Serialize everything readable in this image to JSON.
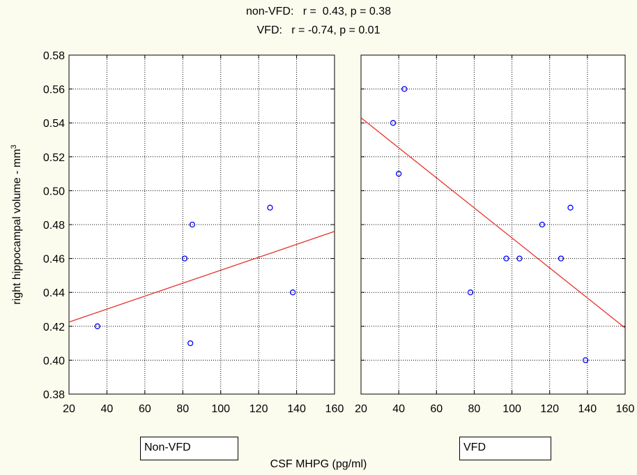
{
  "header": {
    "line1": "non-VFD:   r =  0.43, p = 0.38",
    "line2": "VFD:   r = -0.74, p = 0.01"
  },
  "ylabel": "right hippocampal volume - mm",
  "ylabel_superscript": "3",
  "xlabel": "CSF MHPG (pg/ml)",
  "colors": {
    "background": "#fcfcee",
    "plot_area": "#ffffff",
    "grid": "#000000",
    "marker": "#0000ff",
    "fit_line": "#e8302a"
  },
  "chart_data": [
    {
      "type": "scatter",
      "panel_label": "Non-VFD",
      "x": [
        35,
        81,
        84,
        85,
        126,
        138
      ],
      "y": [
        0.42,
        0.46,
        0.41,
        0.48,
        0.49,
        0.44
      ],
      "fit_line": {
        "x": [
          20,
          160
        ],
        "y": [
          0.4225,
          0.476
        ]
      },
      "xlim": [
        20,
        160
      ],
      "ylim": [
        0.38,
        0.58
      ],
      "xticks": [
        "20",
        "40",
        "60",
        "80",
        "100",
        "120",
        "140",
        "160"
      ],
      "yticks": [
        "0.38",
        "0.40",
        "0.42",
        "0.44",
        "0.46",
        "0.48",
        "0.50",
        "0.52",
        "0.54",
        "0.56",
        "0.58"
      ],
      "grid": true,
      "r": 0.43,
      "p": 0.38
    },
    {
      "type": "scatter",
      "panel_label": "VFD",
      "x": [
        37,
        40,
        43,
        78,
        97,
        104,
        116,
        126,
        131,
        139
      ],
      "y": [
        0.54,
        0.51,
        0.56,
        0.44,
        0.46,
        0.46,
        0.48,
        0.46,
        0.49,
        0.4
      ],
      "fit_line": {
        "x": [
          20,
          160
        ],
        "y": [
          0.543,
          0.419
        ]
      },
      "xlim": [
        20,
        160
      ],
      "ylim": [
        0.38,
        0.58
      ],
      "xticks": [
        "20",
        "40",
        "60",
        "80",
        "100",
        "120",
        "140",
        "160"
      ],
      "yticks": [],
      "grid": true,
      "r": -0.74,
      "p": 0.01
    }
  ]
}
